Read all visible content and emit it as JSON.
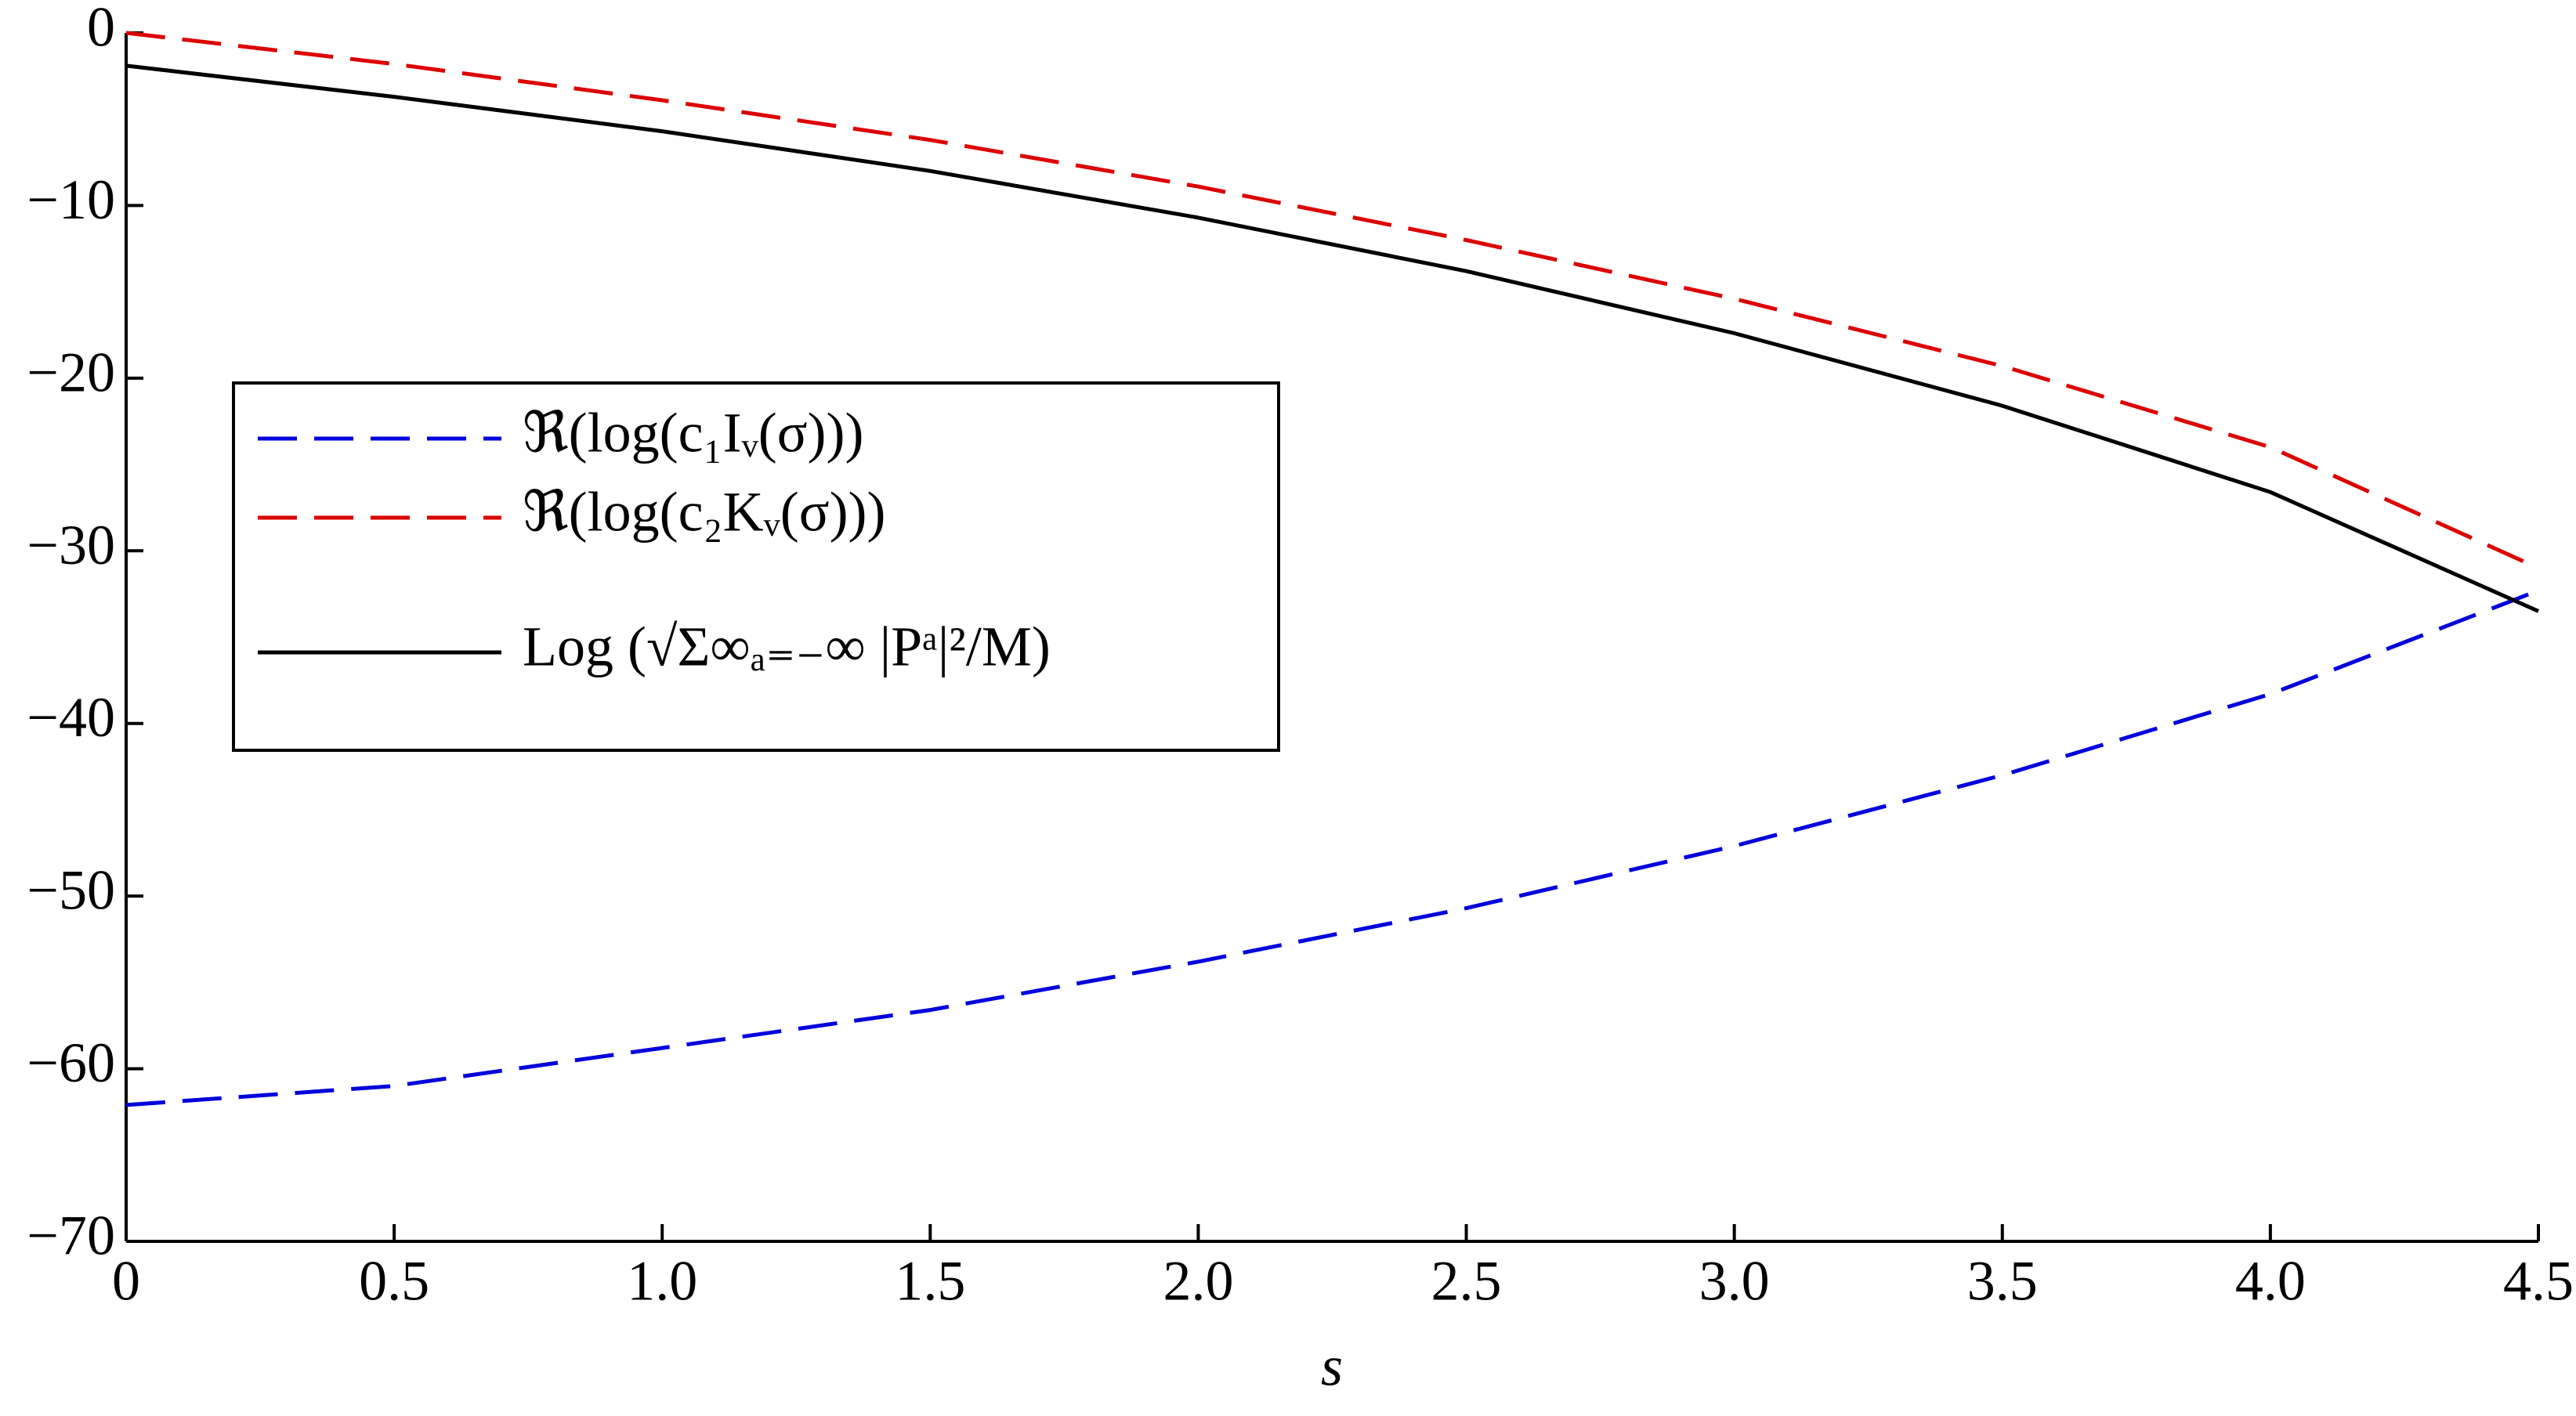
{
  "chart_data": {
    "type": "line",
    "xlabel": "s",
    "x": [
      0,
      0.5,
      1,
      1.5,
      2,
      2.5,
      3,
      3.5,
      4,
      4.5
    ],
    "series": [
      {
        "name": "ℜ(log(c₁Iᵥ(σ)))",
        "color": "#0000dd",
        "dashed": true,
        "values": [
          -62.1,
          -61.0,
          -58.8,
          -56.6,
          -53.8,
          -50.7,
          -47.1,
          -43.0,
          -38.3,
          -32.3
        ]
      },
      {
        "name": "ℜ(log(c₂Kᵥ(σ)))",
        "color": "#dd0000",
        "dashed": true,
        "values": [
          0,
          -1.8,
          -3.9,
          -6.2,
          -8.9,
          -12.0,
          -15.4,
          -19.3,
          -24.0,
          -31.0
        ]
      },
      {
        "name": "Log (√Σ∞ₐ₌₋∞ |Pᵃ|²/M)",
        "color": "#000000",
        "dashed": false,
        "values": [
          -1.9,
          -3.7,
          -5.7,
          -8.0,
          -10.7,
          -13.8,
          -17.4,
          -21.6,
          -26.6,
          -33.5
        ]
      }
    ],
    "xlim": [
      0,
      4.5
    ],
    "xticks": [
      0,
      0.5,
      {
        "value": 1,
        "label": "1.0"
      },
      1.5,
      {
        "value": 2,
        "label": "2.0"
      },
      2.5,
      {
        "value": 3,
        "label": "3.0"
      },
      3.5,
      {
        "value": 4,
        "label": "4.0"
      },
      4.5
    ],
    "ylim": [
      -70,
      0
    ],
    "yticks": [
      {
        "value": -70,
        "label": "−70"
      },
      {
        "value": -60,
        "label": "−60"
      },
      {
        "value": -50,
        "label": "−50"
      },
      {
        "value": -40,
        "label": "−40"
      },
      {
        "value": -30,
        "label": "−30"
      },
      {
        "value": -20,
        "label": "−20"
      },
      {
        "value": -10,
        "label": "−10"
      },
      0
    ],
    "grid": false,
    "legend": "center left"
  }
}
